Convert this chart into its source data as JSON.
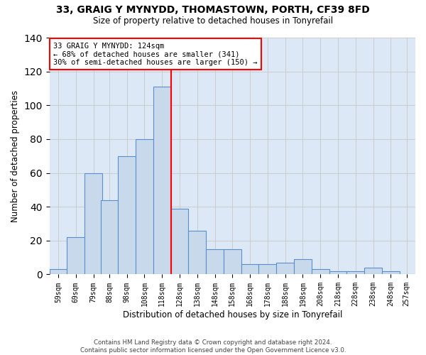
{
  "title1": "33, GRAIG Y MYNYDD, THOMASTOWN, PORTH, CF39 8FD",
  "title2": "Size of property relative to detached houses in Tonyrefail",
  "xlabel": "Distribution of detached houses by size in Tonyrefail",
  "ylabel": "Number of detached properties",
  "bin_labels": [
    "59sqm",
    "69sqm",
    "79sqm",
    "88sqm",
    "98sqm",
    "108sqm",
    "118sqm",
    "128sqm",
    "138sqm",
    "148sqm",
    "158sqm",
    "168sqm",
    "178sqm",
    "188sqm",
    "198sqm",
    "208sqm",
    "218sqm",
    "228sqm",
    "238sqm",
    "248sqm",
    "257sqm"
  ],
  "bar_values": [
    3,
    22,
    60,
    44,
    70,
    80,
    111,
    39,
    26,
    15,
    15,
    6,
    6,
    7,
    9,
    3,
    2,
    2,
    4,
    2,
    0
  ],
  "bar_color": "#c9d9ec",
  "bar_edge_color": "#5b8fc9",
  "vline_color": "red",
  "annotation_text": "33 GRAIG Y MYNYDD: 124sqm\n← 68% of detached houses are smaller (341)\n30% of semi-detached houses are larger (150) →",
  "annotation_box_color": "white",
  "annotation_box_edge": "red",
  "ylim": [
    0,
    140
  ],
  "yticks": [
    0,
    20,
    40,
    60,
    80,
    100,
    120,
    140
  ],
  "grid_color": "#cccccc",
  "bg_color": "#dce8f5",
  "footer": "Contains HM Land Registry data © Crown copyright and database right 2024.\nContains public sector information licensed under the Open Government Licence v3.0."
}
